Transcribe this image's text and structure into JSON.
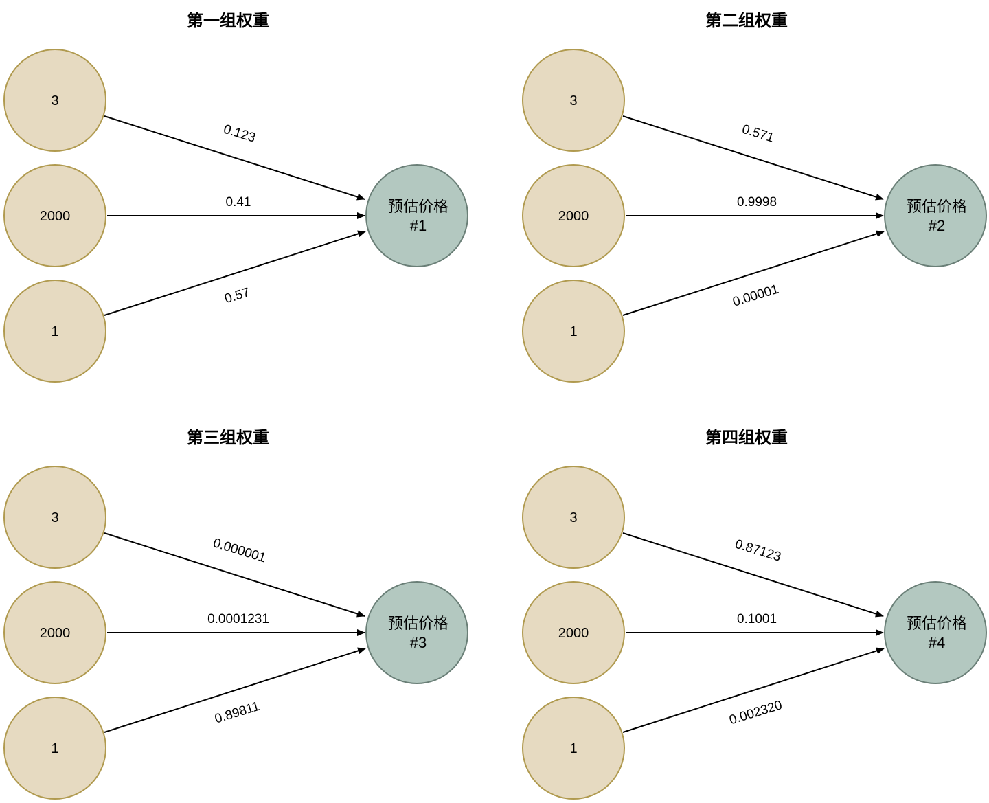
{
  "colors": {
    "input_fill": "#e6dac1",
    "input_stroke": "#b09a4f",
    "output_fill": "#b3c8c0",
    "output_stroke": "#6a7f77",
    "edge": "#000000"
  },
  "panels": [
    {
      "title": "第一组权重",
      "inputs": [
        "3",
        "2000",
        "1"
      ],
      "output": {
        "line1": "预估价格",
        "line2": "#1"
      },
      "weights": [
        "0.123",
        "0.41",
        "0.57"
      ]
    },
    {
      "title": "第二组权重",
      "inputs": [
        "3",
        "2000",
        "1"
      ],
      "output": {
        "line1": "预估价格",
        "line2": "#2"
      },
      "weights": [
        "0.571",
        "0.9998",
        "0.00001"
      ]
    },
    {
      "title": "第三组权重",
      "inputs": [
        "3",
        "2000",
        "1"
      ],
      "output": {
        "line1": "预估价格",
        "line2": "#3"
      },
      "weights": [
        "0.000001",
        "0.0001231",
        "0.89811"
      ]
    },
    {
      "title": "第四组权重",
      "inputs": [
        "3",
        "2000",
        "1"
      ],
      "output": {
        "line1": "预估价格",
        "line2": "#4"
      },
      "weights": [
        "0.87123",
        "0.1001",
        "0.002320"
      ]
    }
  ]
}
